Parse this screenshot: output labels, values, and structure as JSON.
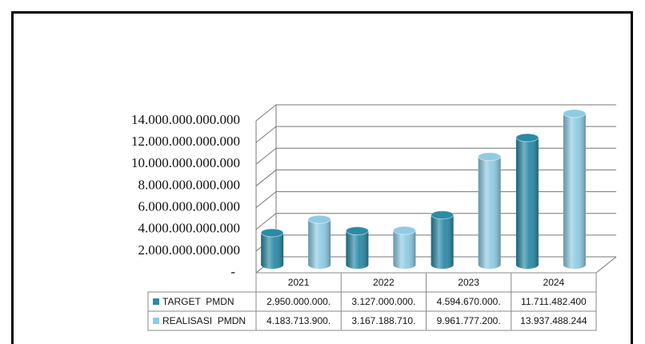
{
  "chart_data": {
    "type": "bar",
    "categories": [
      "2021",
      "2022",
      "2023",
      "2024"
    ],
    "series": [
      {
        "name": "TARGET  PMDN",
        "color": "#2b8aa6",
        "values": [
          2950000000000,
          3127000000000,
          4594670000000,
          11711482400000
        ],
        "value_labels": [
          "2.950.000.000.",
          "3.127.000.000.",
          "4.594.670.000.",
          "11.711.482.400"
        ]
      },
      {
        "name": "REALISASI  PMDN",
        "color": "#8fcbe3",
        "values": [
          4183713900000,
          3167188710000,
          9961777200000,
          13937488244000
        ],
        "value_labels": [
          "4.183.713.900.",
          "3.167.188.710.",
          "9.961.777.200.",
          "13.937.488.244"
        ]
      }
    ],
    "ylim": [
      0,
      14000000000000
    ],
    "yticks": [
      {
        "value": 0,
        "label": "-"
      },
      {
        "value": 2000000000000,
        "label": "2.000.000.000.000"
      },
      {
        "value": 4000000000000,
        "label": "4.000.000.000.000"
      },
      {
        "value": 6000000000000,
        "label": "6.000.000.000.000"
      },
      {
        "value": 8000000000000,
        "label": "8.000.000.000.000"
      },
      {
        "value": 10000000000000,
        "label": "10.000.000.000.000"
      },
      {
        "value": 12000000000000,
        "label": "12.000.000.000.000"
      },
      {
        "value": 14000000000000,
        "label": "14.000.000.000.000"
      }
    ],
    "grid": true,
    "legend": "table"
  }
}
